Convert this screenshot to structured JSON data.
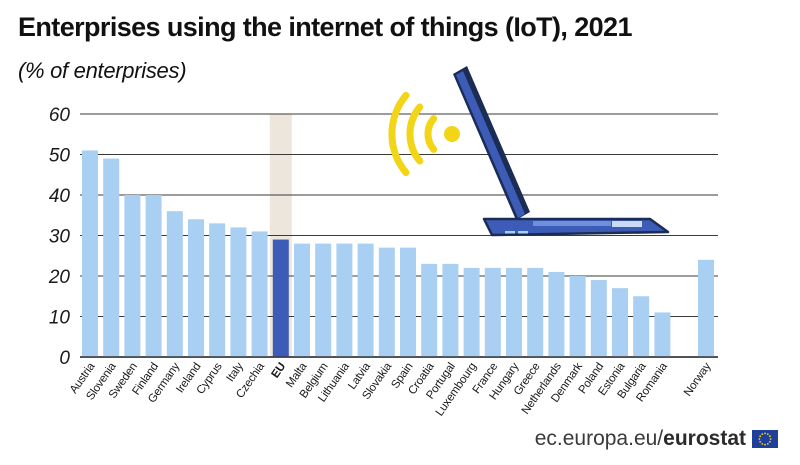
{
  "header": {
    "title": "Enterprises using the internet of things (IoT), 2021",
    "subtitle": "(% of enterprises)"
  },
  "footer": {
    "site": "ec.europa.eu/",
    "brand": "eurostat"
  },
  "colors": {
    "bar": "#a9cff2",
    "bar_eu": "#3d5cb8",
    "eu_band": "#ece6dc",
    "grid": "#3a3a3a",
    "laptop_body": "#3d5cb8",
    "laptop_outline": "#1b2c55",
    "wifi": "#f2d516"
  },
  "icons": [
    "wifi-signal-icon",
    "laptop-icon",
    "eu-flag-icon"
  ],
  "chart_data": {
    "type": "bar",
    "title": "Enterprises using the internet of things (IoT), 2021",
    "subtitle": "(% of enterprises)",
    "categories": [
      "Austria",
      "Slovenia",
      "Sweden",
      "Finland",
      "Germany",
      "Ireland",
      "Cyprus",
      "Italy",
      "Czechia",
      "EU",
      "Malta",
      "Belgium",
      "Lithuania",
      "Latvia",
      "Slovakia",
      "Spain",
      "Croatia",
      "Portugal",
      "Luxembourg",
      "France",
      "Hungary",
      "Greece",
      "Netherlands",
      "Denmark",
      "Poland",
      "Estonia",
      "Bulgaria",
      "Romania",
      "Norway"
    ],
    "values": [
      51,
      49,
      40,
      40,
      36,
      34,
      33,
      32,
      31,
      29,
      28,
      28,
      28,
      28,
      27,
      27,
      23,
      23,
      22,
      22,
      22,
      22,
      21,
      20,
      19,
      17,
      15,
      11,
      24
    ],
    "highlight": "EU",
    "yticks": [
      0,
      10,
      20,
      30,
      40,
      50,
      60
    ],
    "ylim": [
      0,
      60
    ],
    "xlabel": "",
    "ylabel": "",
    "grid": true
  }
}
